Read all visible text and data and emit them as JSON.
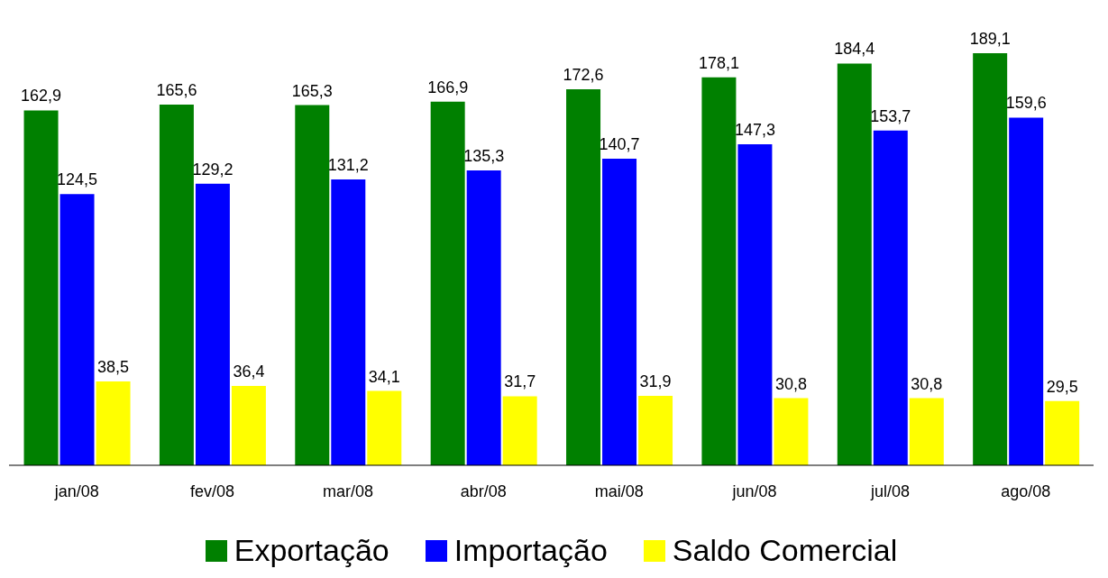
{
  "chart_data": {
    "type": "bar",
    "categories": [
      "jan/08",
      "fev/08",
      "mar/08",
      "abr/08",
      "mai/08",
      "jun/08",
      "jul/08",
      "ago/08"
    ],
    "series": [
      {
        "name": "Exportação",
        "color": "#008000",
        "values": [
          162.9,
          165.6,
          165.3,
          166.9,
          172.6,
          178.1,
          184.4,
          189.1
        ],
        "value_labels": [
          "162,9",
          "165,6",
          "165,3",
          "166,9",
          "172,6",
          "178,1",
          "184,4",
          "189,1"
        ]
      },
      {
        "name": "Importação",
        "color": "#0000ff",
        "values": [
          124.5,
          129.2,
          131.2,
          135.3,
          140.7,
          147.3,
          153.7,
          159.6
        ],
        "value_labels": [
          "124,5",
          "129,2",
          "131,2",
          "135,3",
          "140,7",
          "147,3",
          "153,7",
          "159,6"
        ]
      },
      {
        "name": "Saldo Comercial",
        "color": "#ffff00",
        "values": [
          38.5,
          36.4,
          34.1,
          31.7,
          31.9,
          30.8,
          30.8,
          29.5
        ],
        "value_labels": [
          "38,5",
          "36,4",
          "34,1",
          "31,7",
          "31,9",
          "30,8",
          "30,8",
          "29,5"
        ]
      }
    ],
    "legend": "bottom",
    "grid": false
  }
}
